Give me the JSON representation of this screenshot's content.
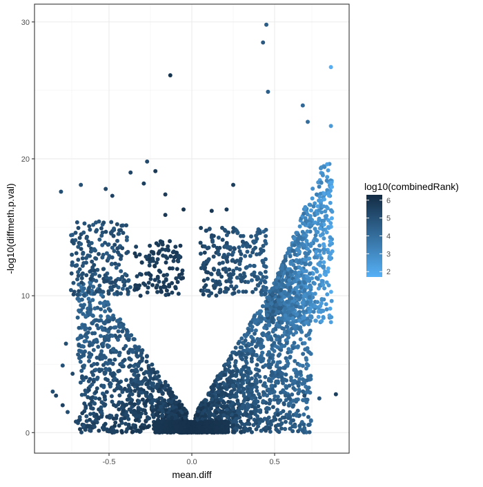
{
  "chart_data": {
    "type": "scatter",
    "xlabel": "mean.diff",
    "ylabel": "-log10(diffmeth.p.val)",
    "xlim": [
      -0.95,
      0.95
    ],
    "ylim": [
      -1.5,
      31.3
    ],
    "x_ticks": [
      -0.5,
      0.0,
      0.5
    ],
    "x_tick_labels": [
      "-0.5",
      "0.0",
      "0.5"
    ],
    "y_ticks": [
      0,
      10,
      20,
      30
    ],
    "y_tick_labels": [
      "0",
      "10",
      "20",
      "30"
    ],
    "grid": true,
    "legend": {
      "title": "log10(combinedRank)",
      "placement": "right",
      "ticks": [
        6,
        5,
        4,
        3,
        2
      ],
      "tick_labels": [
        "6",
        "5",
        "4",
        "3",
        "2"
      ],
      "range": [
        1.7,
        6.3
      ],
      "color_low": "#56B1F7",
      "color_high": "#132B43"
    },
    "highlighted_points": [
      {
        "x": 0.45,
        "y": 29.8,
        "c": 4.6
      },
      {
        "x": 0.43,
        "y": 28.5,
        "c": 4.7
      },
      {
        "x": 0.84,
        "y": 26.7,
        "c": 1.8
      },
      {
        "x": -0.13,
        "y": 26.1,
        "c": 6.0
      },
      {
        "x": 0.46,
        "y": 24.9,
        "c": 4.5
      },
      {
        "x": 0.67,
        "y": 23.9,
        "c": 4.2
      },
      {
        "x": 0.84,
        "y": 22.4,
        "c": 2.5
      },
      {
        "x": 0.7,
        "y": 22.7,
        "c": 4.0
      },
      {
        "x": -0.27,
        "y": 19.8,
        "c": 5.2
      },
      {
        "x": -0.37,
        "y": 19.0,
        "c": 5.4
      },
      {
        "x": -0.22,
        "y": 19.1,
        "c": 5.8
      },
      {
        "x": -0.29,
        "y": 18.2,
        "c": 5.6
      },
      {
        "x": -0.67,
        "y": 18.1,
        "c": 5.0
      },
      {
        "x": -0.79,
        "y": 17.6,
        "c": 5.1
      },
      {
        "x": -0.52,
        "y": 17.8,
        "c": 5.3
      },
      {
        "x": -0.48,
        "y": 17.3,
        "c": 5.5
      },
      {
        "x": 0.25,
        "y": 18.1,
        "c": 5.6
      },
      {
        "x": 0.21,
        "y": 16.3,
        "c": 5.8
      },
      {
        "x": 0.12,
        "y": 16.2,
        "c": 5.9
      },
      {
        "x": -0.05,
        "y": 16.3,
        "c": 6.0
      },
      {
        "x": -0.16,
        "y": 17.4,
        "c": 5.7
      },
      {
        "x": -0.16,
        "y": 15.9,
        "c": 5.8
      },
      {
        "x": -0.84,
        "y": 3.0,
        "c": 5.2
      },
      {
        "x": -0.82,
        "y": 2.7,
        "c": 5.4
      },
      {
        "x": -0.78,
        "y": 2.0,
        "c": 5.5
      },
      {
        "x": -0.75,
        "y": 1.5,
        "c": 5.1
      },
      {
        "x": -0.63,
        "y": 0.5,
        "c": 5.6
      },
      {
        "x": -0.7,
        "y": 0.8,
        "c": 5.3
      },
      {
        "x": 0.87,
        "y": 2.8,
        "c": 5.6
      },
      {
        "x": 0.68,
        "y": 2.7,
        "c": 5.2
      },
      {
        "x": 0.77,
        "y": 2.5,
        "c": 4.9
      },
      {
        "x": 0.52,
        "y": 1.3,
        "c": 5.3
      },
      {
        "x": -0.78,
        "y": 4.9,
        "c": 5.0
      },
      {
        "x": -0.72,
        "y": 4.3,
        "c": 5.3
      },
      {
        "x": -0.76,
        "y": 6.5,
        "c": 5.1
      }
    ]
  }
}
